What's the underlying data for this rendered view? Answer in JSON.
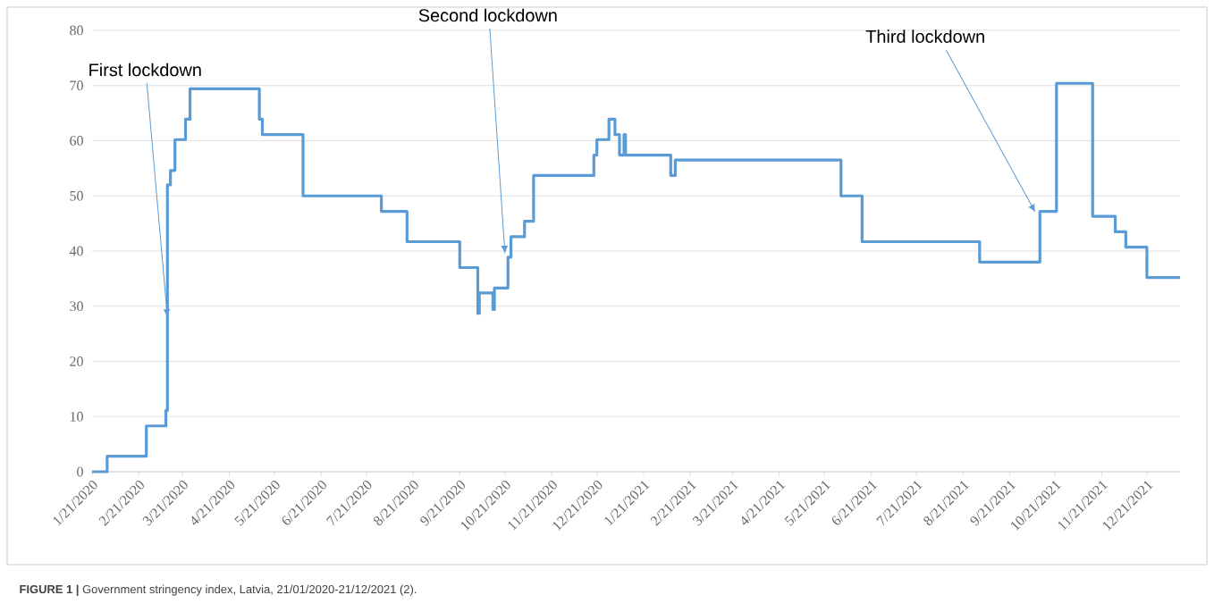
{
  "chart_data": {
    "type": "step",
    "color": "#5b9bd5",
    "grid": "y",
    "x": [
      "2020-01-21",
      "2020-01-31",
      "2020-02-26",
      "2020-03-10",
      "2020-03-11",
      "2020-03-13",
      "2020-03-16",
      "2020-03-23",
      "2020-03-26",
      "2020-05-11",
      "2020-05-13",
      "2020-06-09",
      "2020-07-31",
      "2020-08-17",
      "2020-09-21",
      "2020-10-03",
      "2020-10-04",
      "2020-10-13",
      "2020-10-14",
      "2020-10-23",
      "2020-10-25",
      "2020-11-03",
      "2020-11-09",
      "2020-12-19",
      "2020-12-21",
      "2020-12-29",
      "2021-01-02",
      "2021-01-05",
      "2021-01-08",
      "2021-01-09",
      "2021-02-08",
      "2021-02-11",
      "2021-06-01",
      "2021-06-15",
      "2021-09-01",
      "2021-10-11",
      "2021-10-22",
      "2021-11-15",
      "2021-11-30",
      "2021-12-07",
      "2021-12-21",
      "2022-01-12"
    ],
    "values": [
      0,
      2.8,
      8.3,
      11.1,
      52,
      54.6,
      60.2,
      63.9,
      69.4,
      63.9,
      61.1,
      50.0,
      47.2,
      41.7,
      37.0,
      28.7,
      32.4,
      29.4,
      33.3,
      38.9,
      42.6,
      45.4,
      53.7,
      57.4,
      60.2,
      63.9,
      61.1,
      57.4,
      61.1,
      57.4,
      53.7,
      56.5,
      50.0,
      41.7,
      38.0,
      47.2,
      70.4,
      46.3,
      43.5,
      40.7,
      35.2,
      35.2
    ],
    "xlim": [
      "2020-01-21",
      "2022-01-12"
    ],
    "xticks": [
      {
        "value": "2020-01-21",
        "label": "1/21/2020"
      },
      {
        "value": "2020-02-21",
        "label": "2/21/2020"
      },
      {
        "value": "2020-03-21",
        "label": "3/21/2020"
      },
      {
        "value": "2020-04-21",
        "label": "4/21/2020"
      },
      {
        "value": "2020-05-21",
        "label": "5/21/2020"
      },
      {
        "value": "2020-06-21",
        "label": "6/21/2020"
      },
      {
        "value": "2020-07-21",
        "label": "7/21/2020"
      },
      {
        "value": "2020-08-21",
        "label": "8/21/2020"
      },
      {
        "value": "2020-09-21",
        "label": "9/21/2020"
      },
      {
        "value": "2020-10-21",
        "label": "10/21/2020"
      },
      {
        "value": "2020-11-21",
        "label": "11/21/2020"
      },
      {
        "value": "2020-12-21",
        "label": "12/21/2020"
      },
      {
        "value": "2021-01-21",
        "label": "1/21/2021"
      },
      {
        "value": "2021-02-21",
        "label": "2/21/2021"
      },
      {
        "value": "2021-03-21",
        "label": "3/21/2021"
      },
      {
        "value": "2021-04-21",
        "label": "4/21/2021"
      },
      {
        "value": "2021-05-21",
        "label": "5/21/2021"
      },
      {
        "value": "2021-06-21",
        "label": "6/21/2021"
      },
      {
        "value": "2021-07-21",
        "label": "7/21/2021"
      },
      {
        "value": "2021-08-21",
        "label": "8/21/2021"
      },
      {
        "value": "2021-09-21",
        "label": "9/21/2021"
      },
      {
        "value": "2021-10-21",
        "label": "10/21/2021"
      },
      {
        "value": "2021-11-21",
        "label": "11/21/2021"
      },
      {
        "value": "2021-12-21",
        "label": "12/21/2021"
      }
    ],
    "ylim": [
      0,
      80
    ],
    "yticks": [
      0,
      10,
      20,
      30,
      40,
      50,
      60,
      70,
      80
    ],
    "annotations": [
      {
        "text": "First lockdown",
        "x": "2020-03-11",
        "y": 28
      },
      {
        "text": "Second lockdown",
        "x": "2020-10-21",
        "y": 39.5
      },
      {
        "text": "Third lockdown",
        "x": "2021-10-08",
        "y": 47
      },
      "**FIGURE 1 |** Government stringency index, Latvia, 21/01/2020-21/12/2021 (2)."
    ]
  }
}
